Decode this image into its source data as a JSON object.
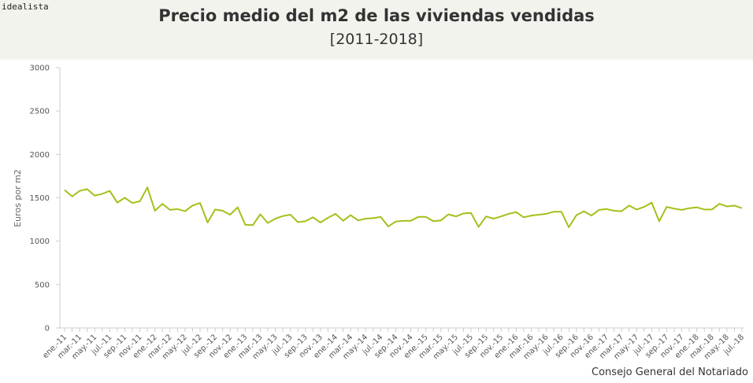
{
  "brand": "idealista",
  "source": "Consejo General del Notariado",
  "colors": {
    "line": "#a4c01a",
    "header_bg": "#f3f3ee",
    "axis": "#cccccc"
  },
  "chart_data": {
    "type": "line",
    "title": "Precio medio del m2 de las viviendas vendidas",
    "subtitle": "[2011-2018]",
    "ylabel": "Euros por m2",
    "ylim": [
      0,
      3000
    ],
    "yticks": [
      0,
      500,
      1000,
      1500,
      2000,
      2500,
      3000
    ],
    "grid": false,
    "x": [
      "ene.-11",
      "feb.-11",
      "mar.-11",
      "abr.-11",
      "may.-11",
      "jun.-11",
      "jul.-11",
      "ago.-11",
      "sep.-11",
      "oct.-11",
      "nov.-11",
      "dic.-11",
      "ene.-12",
      "feb.-12",
      "mar.-12",
      "abr.-12",
      "may.-12",
      "jun.-12",
      "jul.-12",
      "ago.-12",
      "sep.-12",
      "oct.-12",
      "nov.-12",
      "dic.-12",
      "ene.-13",
      "feb.-13",
      "mar.-13",
      "abr.-13",
      "may.-13",
      "jun.-13",
      "jul.-13",
      "ago.-13",
      "sep.-13",
      "oct.-13",
      "nov.-13",
      "dic.-13",
      "ene.-14",
      "feb.-14",
      "mar.-14",
      "abr.-14",
      "may.-14",
      "jun.-14",
      "jul.-14",
      "ago.-14",
      "sep.-14",
      "oct.-14",
      "nov.-14",
      "dic.-14",
      "ene.-15",
      "feb.-15",
      "mar.-15",
      "abr.-15",
      "may.-15",
      "jun.-15",
      "jul.-15",
      "ago.-15",
      "sep.-15",
      "oct.-15",
      "nov.-15",
      "dic.-15",
      "ene.-16",
      "feb.-16",
      "mar.-16",
      "abr.-16",
      "may.-16",
      "jun.-16",
      "jul.-16",
      "ago.-16",
      "sep.-16",
      "oct.-16",
      "nov.-16",
      "dic.-16",
      "ene.-17",
      "feb.-17",
      "mar.-17",
      "abr.-17",
      "may.-17",
      "jun.-17",
      "jul.-17",
      "ago.-17",
      "sep.-17",
      "oct.-17",
      "nov.-17",
      "dic.-17",
      "ene.-18",
      "feb.-18",
      "mar.-18",
      "abr.-18",
      "may.-18",
      "jun.-18",
      "jul.-18"
    ],
    "tick_labels": [
      "ene.-11",
      "mar.-11",
      "may.-11",
      "jul.-11",
      "sep.-11",
      "nov.-11",
      "ene.-12",
      "mar.-12",
      "may.-12",
      "jul.-12",
      "sep.-12",
      "nov.-12",
      "ene.-13",
      "mar.-13",
      "may.-13",
      "jul.-13",
      "sep.-13",
      "nov.-13",
      "ene.-14",
      "mar.-14",
      "may.-14",
      "jul.-14",
      "sep.-14",
      "nov.-14",
      "ene.-15",
      "mar.-15",
      "may.-15",
      "jul.-15",
      "sep.-15",
      "nov.-15",
      "ene.-16",
      "mar.-16",
      "may.-16",
      "jul.-16",
      "sep.-16",
      "nov.-16",
      "ene.-17",
      "mar.-17",
      "may.-17",
      "jul.-17",
      "sep.-17",
      "nov.-17",
      "ene.-18",
      "mar.-18",
      "may.-18",
      "jul.-18"
    ],
    "series": [
      {
        "values": [
          1590,
          1515,
          1580,
          1600,
          1525,
          1545,
          1580,
          1445,
          1500,
          1440,
          1460,
          1620,
          1350,
          1430,
          1360,
          1370,
          1345,
          1410,
          1440,
          1215,
          1365,
          1350,
          1305,
          1390,
          1190,
          1185,
          1310,
          1210,
          1260,
          1290,
          1305,
          1220,
          1230,
          1275,
          1215,
          1270,
          1315,
          1235,
          1300,
          1240,
          1260,
          1265,
          1280,
          1170,
          1225,
          1235,
          1235,
          1280,
          1280,
          1230,
          1240,
          1310,
          1285,
          1320,
          1325,
          1165,
          1285,
          1260,
          1285,
          1315,
          1335,
          1275,
          1295,
          1305,
          1315,
          1340,
          1340,
          1160,
          1300,
          1345,
          1295,
          1360,
          1370,
          1350,
          1345,
          1410,
          1365,
          1395,
          1445,
          1230,
          1395,
          1375,
          1360,
          1380,
          1390,
          1365,
          1365,
          1430,
          1400,
          1410,
          1380
        ]
      }
    ]
  }
}
